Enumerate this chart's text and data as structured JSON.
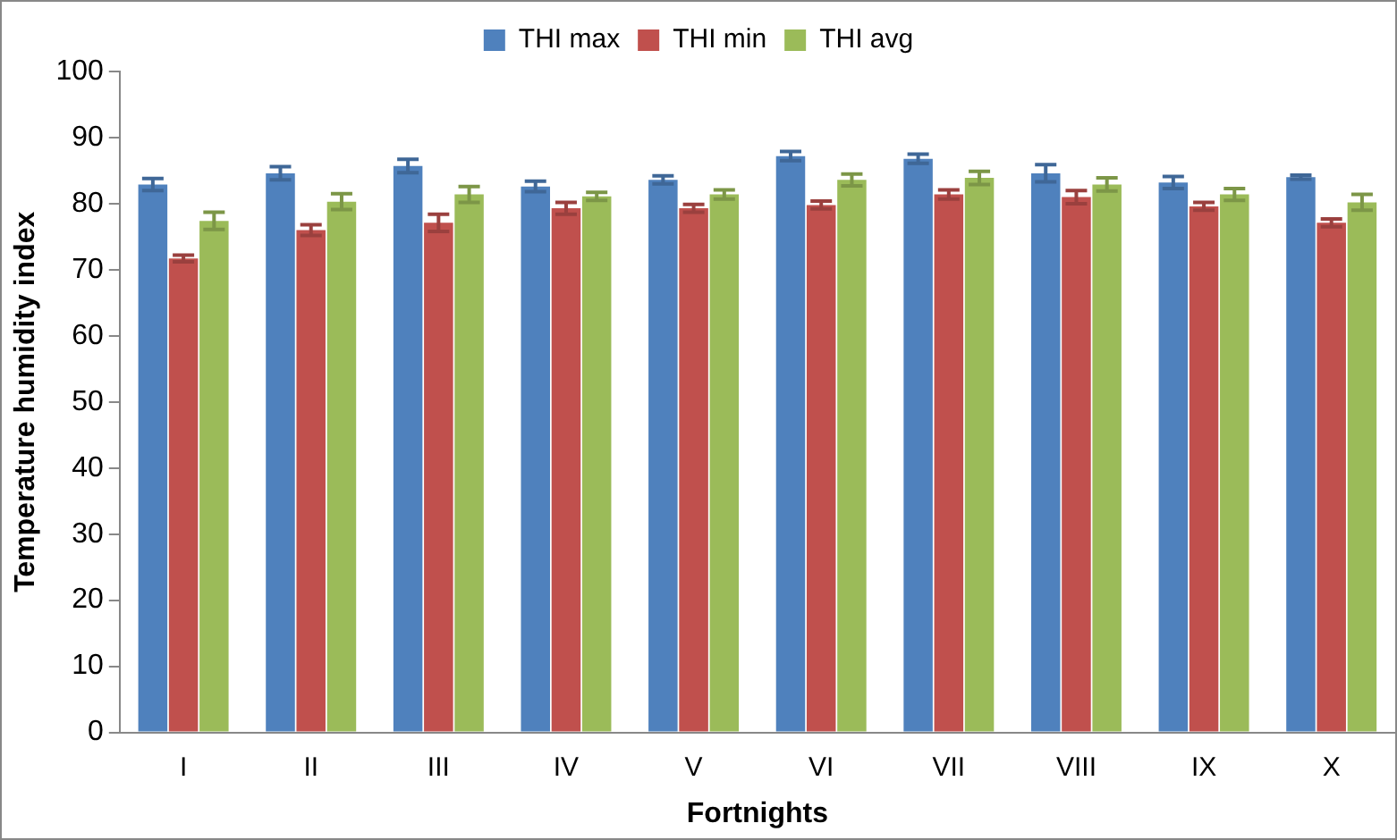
{
  "chart_data": {
    "type": "bar",
    "xlabel": "Fortnights",
    "ylabel": "Temperature humidity index",
    "categories": [
      "I",
      "II",
      "III",
      "IV",
      "V",
      "VI",
      "VII",
      "VIII",
      "IX",
      "X"
    ],
    "series": [
      {
        "name": "THI max",
        "color": "#4f81bd",
        "values": [
          82.9,
          84.6,
          85.7,
          82.6,
          83.6,
          87.2,
          86.8,
          84.6,
          83.2,
          84.0
        ],
        "errors": [
          0.9,
          1.0,
          1.0,
          0.8,
          0.6,
          0.7,
          0.7,
          1.3,
          0.9,
          0.3
        ]
      },
      {
        "name": "THI min",
        "color": "#c0504d",
        "values": [
          71.7,
          76.0,
          77.1,
          79.3,
          79.3,
          79.8,
          81.4,
          81.0,
          79.6,
          77.1
        ],
        "errors": [
          0.5,
          0.8,
          1.3,
          0.9,
          0.6,
          0.6,
          0.7,
          1.0,
          0.6,
          0.6
        ]
      },
      {
        "name": "THI avg",
        "color": "#9bbb59",
        "values": [
          77.4,
          80.3,
          81.4,
          81.1,
          81.4,
          83.6,
          83.9,
          82.9,
          81.4,
          80.2
        ],
        "errors": [
          1.3,
          1.2,
          1.2,
          0.6,
          0.7,
          0.9,
          1.0,
          1.0,
          0.9,
          1.2
        ]
      }
    ],
    "ylim": [
      0,
      100
    ],
    "yticks": [
      0,
      10,
      20,
      30,
      40,
      50,
      60,
      70,
      80,
      90,
      100
    ],
    "grid": false,
    "legend": "top"
  }
}
